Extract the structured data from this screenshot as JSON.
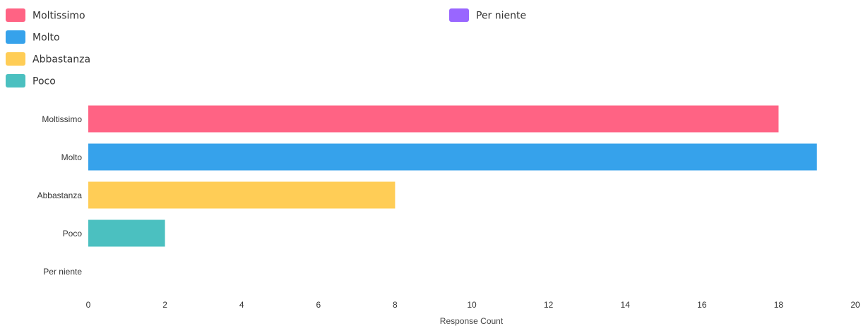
{
  "colors": {
    "Moltissimo": "#ff6384",
    "Molto": "#36a2eb",
    "Abbastanza": "#ffcd56",
    "Poco": "#4bc0c0",
    "Per niente": "#9966ff"
  },
  "chart_data": {
    "type": "bar",
    "orientation": "horizontal",
    "categories": [
      "Moltissimo",
      "Molto",
      "Abbastanza",
      "Poco",
      "Per niente"
    ],
    "values": [
      18,
      19,
      8,
      2,
      0
    ],
    "xlabel": "Response Count",
    "ylabel": "",
    "xlim": [
      0,
      20
    ],
    "xticks": [
      0,
      2,
      4,
      6,
      8,
      10,
      12,
      14,
      16,
      18,
      20
    ],
    "grid": false,
    "legend": {
      "placement": "top",
      "entries": [
        "Moltissimo",
        "Molto",
        "Abbastanza",
        "Poco",
        "Per niente"
      ]
    }
  }
}
